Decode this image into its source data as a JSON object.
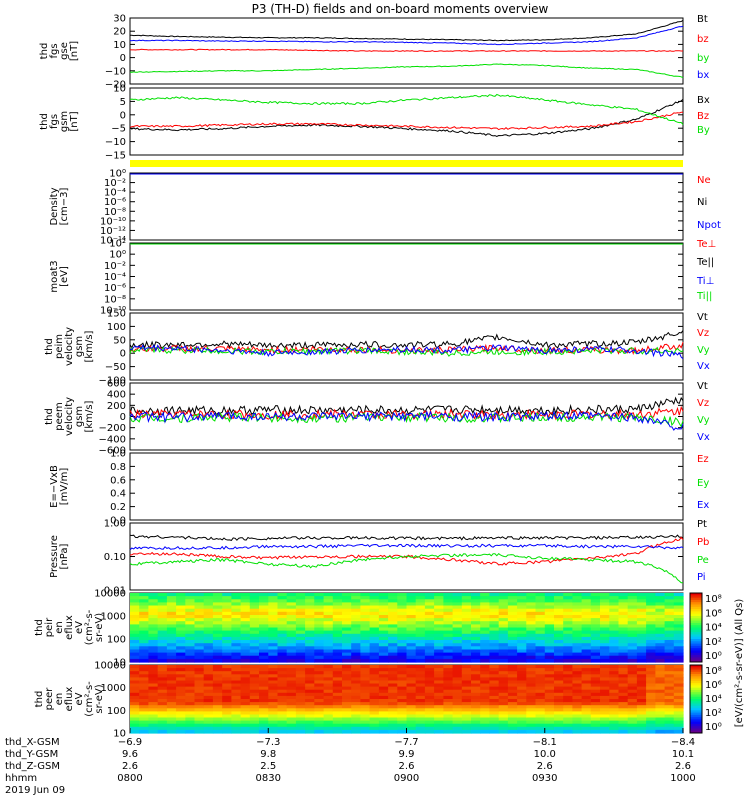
{
  "title": "P3 (TH-D) fields and on-board moments overview",
  "colors": {
    "black": "#000000",
    "red": "#ff0000",
    "green": "#00e000",
    "blue": "#0000ff",
    "yellow": "#ffff00"
  },
  "chart_data": [
    {
      "type": "line",
      "id": "fgs_gse",
      "ylabel": [
        "thd",
        "fgs",
        "gse",
        "[nT]"
      ],
      "yticks": [
        "30",
        "20",
        "10",
        "0",
        "−10",
        "−20"
      ],
      "ylim": [
        -20,
        30
      ],
      "series": [
        {
          "name": "Bt",
          "color": "black",
          "values": [
            17,
            16,
            15.5,
            15,
            15,
            14.5,
            14,
            13.5,
            13,
            13.5,
            15,
            18,
            28
          ]
        },
        {
          "name": "bz",
          "color": "red",
          "values": [
            6,
            6,
            6,
            6,
            5.5,
            5,
            5,
            5,
            5,
            5,
            5,
            5,
            5
          ]
        },
        {
          "name": "by",
          "color": "green",
          "values": [
            -11,
            -10.5,
            -10,
            -10,
            -9,
            -8,
            -7,
            -6.5,
            -5,
            -6,
            -8,
            -9,
            -15
          ]
        },
        {
          "name": "bx",
          "color": "blue",
          "values": [
            13,
            13,
            12.5,
            12.5,
            12,
            12,
            11.5,
            11,
            10,
            11,
            12,
            15,
            24
          ]
        }
      ]
    },
    {
      "type": "line",
      "id": "fgs_gsm",
      "ylabel": [
        "thd",
        "fgs",
        "gsm",
        "[nT]"
      ],
      "yticks": [
        "10",
        "5",
        "0",
        "−5",
        "−10",
        "−15"
      ],
      "ylim": [
        -18,
        10
      ],
      "series": [
        {
          "name": "Bx",
          "color": "black",
          "values": [
            -7,
            -7.5,
            -7,
            -6,
            -5.5,
            -6,
            -7,
            -8,
            -10,
            -9,
            -7,
            -3,
            5
          ]
        },
        {
          "name": "Bz",
          "color": "red",
          "values": [
            -6,
            -6,
            -5.5,
            -5,
            -5,
            -5.5,
            -6,
            -6.5,
            -7,
            -6.5,
            -6,
            -4,
            0
          ]
        },
        {
          "name": "By",
          "color": "green",
          "values": [
            5,
            6,
            5,
            4,
            3.5,
            3.5,
            5,
            6,
            7,
            5,
            3,
            1,
            -5
          ]
        }
      ]
    },
    {
      "type": "line",
      "id": "density",
      "ylabel": [
        "Density",
        "[cm−3]"
      ],
      "yticks": [
        "10⁰",
        "10⁻²",
        "10⁻⁴",
        "10⁻⁶",
        "10⁻⁸",
        "10⁻¹⁰",
        "10⁻¹²",
        "10⁻¹⁴"
      ],
      "ylim": [
        -14,
        0
      ],
      "log": true,
      "series": [
        {
          "name": "Ne",
          "color": "red",
          "values": [
            0,
            0,
            0,
            0,
            0,
            0,
            0,
            0,
            0,
            0,
            0,
            0,
            0
          ]
        },
        {
          "name": "Ni",
          "color": "black",
          "values": [
            0,
            0,
            0,
            0,
            0,
            0,
            0,
            0,
            0,
            0,
            0,
            0,
            0
          ]
        },
        {
          "name": "Npot",
          "color": "blue",
          "values": [
            0,
            0,
            0,
            0,
            0,
            0,
            0,
            0,
            0,
            0,
            0,
            0,
            0
          ]
        }
      ]
    },
    {
      "type": "line",
      "id": "moat3",
      "ylabel": [
        "moat3",
        "[eV]"
      ],
      "yticks": [
        "10²",
        "10⁰",
        "10⁻²",
        "10⁻⁴",
        "10⁻⁶",
        "10⁻⁸",
        "10⁻¹⁰"
      ],
      "ylim": [
        -10,
        2
      ],
      "log": true,
      "series": [
        {
          "name": "Te⊥",
          "color": "red",
          "values": [
            2,
            2,
            2,
            2,
            2,
            2,
            2,
            2,
            2,
            2,
            2,
            2,
            2
          ]
        },
        {
          "name": "Te||",
          "color": "black",
          "values": [
            2,
            2,
            2,
            2,
            2,
            2,
            2,
            2,
            2,
            2,
            2,
            2,
            2
          ]
        },
        {
          "name": "Ti⊥",
          "color": "blue",
          "values": [
            2,
            2,
            2,
            2,
            2,
            2,
            2,
            2,
            2,
            2,
            2,
            2,
            2
          ]
        },
        {
          "name": "Ti||",
          "color": "green",
          "values": [
            2,
            2,
            2,
            2,
            2,
            2,
            2,
            2,
            2,
            2,
            2,
            2,
            2
          ]
        }
      ]
    },
    {
      "type": "line",
      "id": "peim_vel",
      "ylabel": [
        "thd",
        "peim",
        "velocity",
        "gsm",
        "[km/s]"
      ],
      "yticks": [
        "150",
        "100",
        "50",
        "0",
        "−50",
        "−100"
      ],
      "ylim": [
        -100,
        150
      ],
      "series": [
        {
          "name": "Vt",
          "color": "black",
          "values": [
            30,
            32,
            35,
            28,
            30,
            33,
            30,
            35,
            60,
            30,
            35,
            40,
            80
          ]
        },
        {
          "name": "Vz",
          "color": "red",
          "values": [
            15,
            18,
            15,
            12,
            15,
            14,
            10,
            12,
            20,
            10,
            12,
            10,
            30
          ]
        },
        {
          "name": "Vy",
          "color": "green",
          "values": [
            10,
            12,
            8,
            5,
            8,
            10,
            5,
            0,
            5,
            5,
            10,
            8,
            10
          ]
        },
        {
          "name": "Vx",
          "color": "blue",
          "values": [
            20,
            18,
            10,
            0,
            5,
            10,
            15,
            10,
            20,
            10,
            15,
            10,
            -10
          ]
        }
      ]
    },
    {
      "type": "line",
      "id": "peem_vel",
      "ylabel": [
        "thd",
        "peem",
        "velocity",
        "gsm",
        "[km/s]"
      ],
      "yticks": [
        "600",
        "400",
        "200",
        "0",
        "−200",
        "−400",
        "−600"
      ],
      "ylim": [
        -600,
        600
      ],
      "series": [
        {
          "name": "Vt",
          "color": "black",
          "values": [
            100,
            110,
            105,
            120,
            110,
            115,
            110,
            120,
            130,
            110,
            120,
            130,
            300
          ]
        },
        {
          "name": "Vz",
          "color": "red",
          "values": [
            30,
            40,
            35,
            30,
            40,
            35,
            30,
            40,
            35,
            30,
            40,
            35,
            100
          ]
        },
        {
          "name": "Vy",
          "color": "green",
          "values": [
            -20,
            -30,
            -10,
            -20,
            -30,
            -20,
            -10,
            -20,
            -30,
            -20,
            -10,
            -20,
            -100
          ]
        },
        {
          "name": "Vx",
          "color": "blue",
          "values": [
            0,
            -20,
            10,
            0,
            -10,
            0,
            10,
            0,
            -10,
            0,
            10,
            -10,
            -200
          ]
        }
      ]
    },
    {
      "type": "line",
      "id": "e_vxb",
      "ylabel": [
        "E=−VxB",
        "[mV/m]"
      ],
      "yticks": [
        "1.0",
        "0.8",
        "0.6",
        "0.4",
        "0.2",
        "0.0"
      ],
      "ylim": [
        0,
        1
      ],
      "series": [
        {
          "name": "Ez",
          "color": "red",
          "values": []
        },
        {
          "name": "Ey",
          "color": "green",
          "values": []
        },
        {
          "name": "Ex",
          "color": "blue",
          "values": []
        }
      ]
    },
    {
      "type": "line",
      "id": "pressure",
      "ylabel": [
        "Pressure",
        "[nPa]"
      ],
      "yticks": [
        "1.00",
        "0.10",
        "0.01"
      ],
      "ylim": [
        -2,
        0
      ],
      "log": true,
      "series": [
        {
          "name": "Pt",
          "color": "black",
          "values": [
            0.4,
            0.38,
            0.33,
            0.35,
            0.36,
            0.36,
            0.35,
            0.35,
            0.36,
            0.36,
            0.36,
            0.37,
            0.4
          ]
        },
        {
          "name": "Pb",
          "color": "red",
          "values": [
            0.12,
            0.12,
            0.1,
            0.09,
            0.1,
            0.1,
            0.1,
            0.08,
            0.06,
            0.07,
            0.09,
            0.12,
            0.35
          ]
        },
        {
          "name": "Pe",
          "color": "green",
          "values": [
            0.06,
            0.07,
            0.08,
            0.06,
            0.05,
            0.08,
            0.1,
            0.11,
            0.11,
            0.09,
            0.08,
            0.07,
            0.015
          ]
        },
        {
          "name": "Pi",
          "color": "blue",
          "values": [
            0.17,
            0.18,
            0.18,
            0.2,
            0.2,
            0.21,
            0.21,
            0.21,
            0.21,
            0.21,
            0.2,
            0.2,
            0.18
          ]
        }
      ]
    },
    {
      "type": "heatmap",
      "id": "peir",
      "ylabel": [
        "thd",
        "peir",
        "en",
        "eflux",
        "eV",
        "(cm²-s-",
        "sr-eV)"
      ],
      "yticks": [
        "10000",
        "1000",
        "100",
        "10"
      ],
      "ylim": [
        1,
        4.2
      ],
      "log": true
    },
    {
      "type": "heatmap",
      "id": "peer",
      "ylabel": [
        "thd",
        "peer",
        "en",
        "eflux",
        "eV",
        "(cm²-s-",
        "sr-eV)"
      ],
      "yticks": [
        "10000",
        "1000",
        "100",
        "10"
      ],
      "ylim": [
        1,
        4.2
      ],
      "log": true
    }
  ],
  "colorbar": {
    "label": "[eV/(cm²-s-sr-eV)] (All Qs)",
    "upper_ticks": [
      "10⁸",
      "10⁶",
      "10⁴",
      "10²",
      "10⁰"
    ],
    "lower_ticks": [
      "10⁸",
      "10⁶",
      "10⁴",
      "10²",
      "10⁰"
    ]
  },
  "xaxis": {
    "ticks": [
      "0800",
      "0830",
      "0900",
      "0930",
      "1000"
    ],
    "x_gsm": [
      "−6.9",
      "−7.3",
      "−7.7",
      "−8.1",
      "−8.4"
    ],
    "y_gsm": [
      "9.6",
      "9.8",
      "9.9",
      "10.0",
      "10.1"
    ],
    "z_gsm": [
      "2.6",
      "2.5",
      "2.6",
      "2.6",
      "2.6"
    ],
    "row_labels": [
      "thd_X-GSM",
      "thd_Y-GSM",
      "thd_Z-GSM",
      "hhmm"
    ],
    "date": "2019 Jun 09"
  }
}
